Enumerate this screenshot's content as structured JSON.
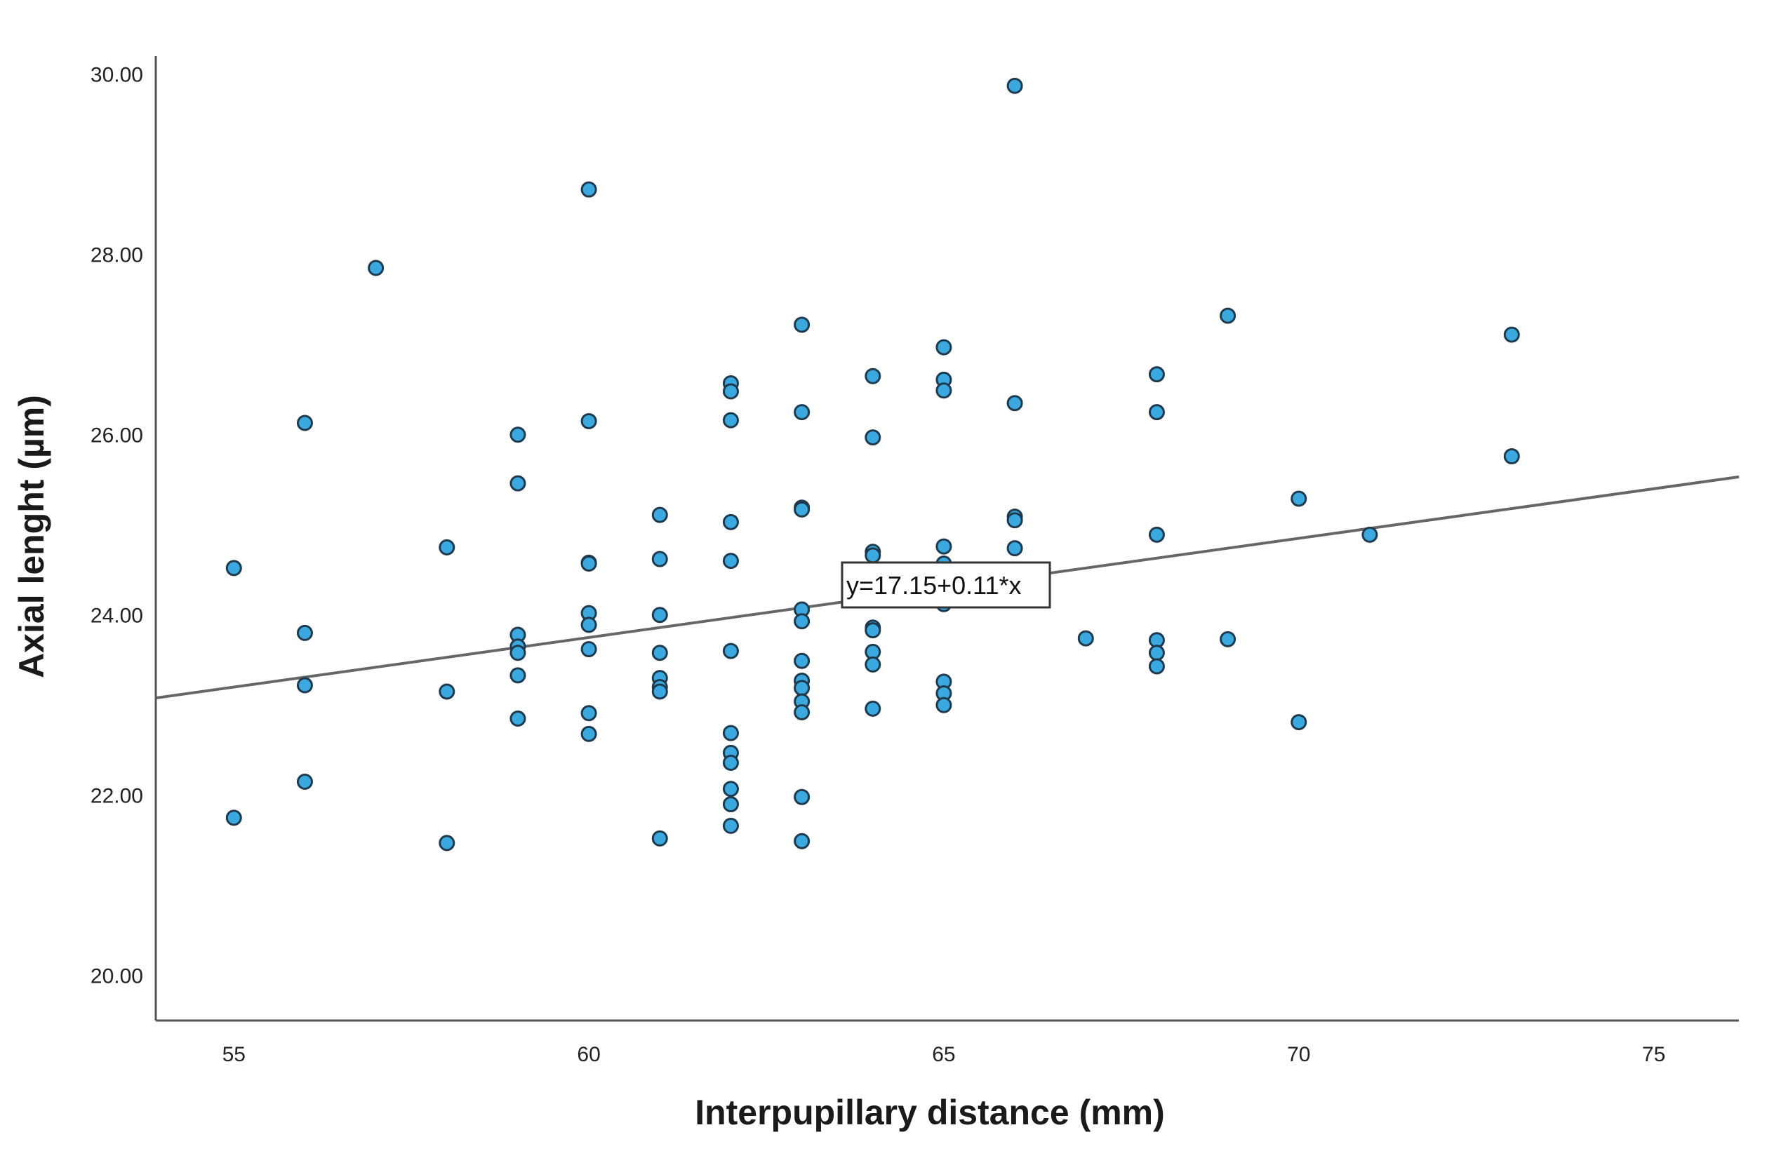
{
  "chart_data": {
    "type": "scatter",
    "title": "",
    "xlabel": "Interpupillary distance (mm)",
    "ylabel": "Axial lenght (µm)",
    "xlim": [
      53.9,
      76.2
    ],
    "ylim": [
      19.5,
      30.2
    ],
    "x_ticks": [
      55,
      60,
      65,
      70,
      75
    ],
    "x_tick_labels": [
      "55",
      "60",
      "65",
      "70",
      "75"
    ],
    "y_ticks": [
      20,
      22,
      24,
      26,
      28,
      30
    ],
    "y_tick_labels": [
      "20.00",
      "22.00",
      "24.00",
      "26.00",
      "28.00",
      "30.00"
    ],
    "grid": false,
    "colors": {
      "marker_fill": "#3aa9e0",
      "marker_edge": "#1d3a4f",
      "fit_line": "#666666",
      "axis": "#555555"
    },
    "fit_line": {
      "intercept": 17.15,
      "slope": 0.11,
      "label": "y=17.15+0.11*x"
    },
    "points": [
      {
        "x": 55,
        "y": 24.52
      },
      {
        "x": 55,
        "y": 21.75
      },
      {
        "x": 56,
        "y": 26.13
      },
      {
        "x": 56,
        "y": 23.8
      },
      {
        "x": 56,
        "y": 23.22
      },
      {
        "x": 56,
        "y": 22.15
      },
      {
        "x": 57,
        "y": 27.85
      },
      {
        "x": 58,
        "y": 24.75
      },
      {
        "x": 58,
        "y": 23.15
      },
      {
        "x": 58,
        "y": 21.47
      },
      {
        "x": 59,
        "y": 26.0
      },
      {
        "x": 59,
        "y": 25.46
      },
      {
        "x": 59,
        "y": 23.78
      },
      {
        "x": 59,
        "y": 23.65
      },
      {
        "x": 59,
        "y": 23.58
      },
      {
        "x": 59,
        "y": 23.33
      },
      {
        "x": 59,
        "y": 22.85
      },
      {
        "x": 60,
        "y": 28.72
      },
      {
        "x": 60,
        "y": 26.15
      },
      {
        "x": 60,
        "y": 24.58
      },
      {
        "x": 60,
        "y": 24.57
      },
      {
        "x": 60,
        "y": 24.02
      },
      {
        "x": 60,
        "y": 23.89
      },
      {
        "x": 60,
        "y": 23.62
      },
      {
        "x": 60,
        "y": 22.91
      },
      {
        "x": 60,
        "y": 22.68
      },
      {
        "x": 61,
        "y": 25.11
      },
      {
        "x": 61,
        "y": 24.62
      },
      {
        "x": 61,
        "y": 24.0
      },
      {
        "x": 61,
        "y": 23.58
      },
      {
        "x": 61,
        "y": 23.3
      },
      {
        "x": 61,
        "y": 23.2
      },
      {
        "x": 61,
        "y": 23.15
      },
      {
        "x": 61,
        "y": 21.52
      },
      {
        "x": 62,
        "y": 26.57
      },
      {
        "x": 62,
        "y": 26.48
      },
      {
        "x": 62,
        "y": 26.16
      },
      {
        "x": 62,
        "y": 25.03
      },
      {
        "x": 62,
        "y": 24.6
      },
      {
        "x": 62,
        "y": 23.6
      },
      {
        "x": 62,
        "y": 22.69
      },
      {
        "x": 62,
        "y": 22.47
      },
      {
        "x": 62,
        "y": 22.36
      },
      {
        "x": 62,
        "y": 22.07
      },
      {
        "x": 62,
        "y": 21.9
      },
      {
        "x": 62,
        "y": 21.66
      },
      {
        "x": 63,
        "y": 27.22
      },
      {
        "x": 63,
        "y": 26.25
      },
      {
        "x": 63,
        "y": 25.19
      },
      {
        "x": 63,
        "y": 25.17
      },
      {
        "x": 63,
        "y": 24.06
      },
      {
        "x": 63,
        "y": 23.93
      },
      {
        "x": 63,
        "y": 23.49
      },
      {
        "x": 63,
        "y": 23.27
      },
      {
        "x": 63,
        "y": 23.19
      },
      {
        "x": 63,
        "y": 23.04
      },
      {
        "x": 63,
        "y": 22.92
      },
      {
        "x": 63,
        "y": 21.98
      },
      {
        "x": 63,
        "y": 21.49
      },
      {
        "x": 64,
        "y": 26.65
      },
      {
        "x": 64,
        "y": 25.97
      },
      {
        "x": 64,
        "y": 24.7
      },
      {
        "x": 64,
        "y": 24.66
      },
      {
        "x": 64,
        "y": 23.86
      },
      {
        "x": 64,
        "y": 23.83
      },
      {
        "x": 64,
        "y": 23.59
      },
      {
        "x": 64,
        "y": 23.45
      },
      {
        "x": 64,
        "y": 22.96
      },
      {
        "x": 65,
        "y": 26.97
      },
      {
        "x": 65,
        "y": 26.61
      },
      {
        "x": 65,
        "y": 26.49
      },
      {
        "x": 65,
        "y": 24.76
      },
      {
        "x": 65,
        "y": 24.57
      },
      {
        "x": 65,
        "y": 24.12
      },
      {
        "x": 65,
        "y": 23.26
      },
      {
        "x": 65,
        "y": 23.13
      },
      {
        "x": 65,
        "y": 23.0
      },
      {
        "x": 66,
        "y": 29.87
      },
      {
        "x": 66,
        "y": 26.35
      },
      {
        "x": 66,
        "y": 25.09
      },
      {
        "x": 66,
        "y": 25.05
      },
      {
        "x": 66,
        "y": 24.74
      },
      {
        "x": 67,
        "y": 23.74
      },
      {
        "x": 68,
        "y": 26.67
      },
      {
        "x": 68,
        "y": 26.25
      },
      {
        "x": 68,
        "y": 24.89
      },
      {
        "x": 68,
        "y": 23.72
      },
      {
        "x": 68,
        "y": 23.58
      },
      {
        "x": 68,
        "y": 23.43
      },
      {
        "x": 69,
        "y": 27.32
      },
      {
        "x": 69,
        "y": 23.73
      },
      {
        "x": 70,
        "y": 25.29
      },
      {
        "x": 70,
        "y": 22.81
      },
      {
        "x": 71,
        "y": 24.89
      },
      {
        "x": 73,
        "y": 27.11
      },
      {
        "x": 73,
        "y": 25.76
      }
    ]
  }
}
